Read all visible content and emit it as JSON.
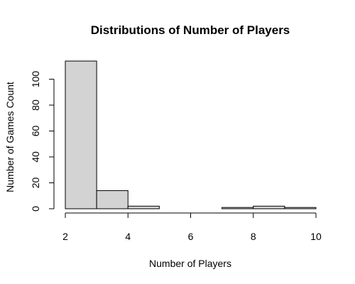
{
  "chart_data": {
    "type": "bar",
    "title": "Distributions of Number of Players",
    "xlabel": "Number of Players",
    "ylabel": "Number of Games Count",
    "bins": [
      [
        2,
        3
      ],
      [
        3,
        4
      ],
      [
        4,
        5
      ],
      [
        5,
        6
      ],
      [
        6,
        7
      ],
      [
        7,
        8
      ],
      [
        8,
        9
      ],
      [
        9,
        10
      ]
    ],
    "values": [
      114,
      14,
      2,
      0,
      0,
      1,
      2,
      1
    ],
    "xlim": [
      2,
      10
    ],
    "ylim": [
      0,
      114
    ],
    "xticks": [
      2,
      4,
      6,
      8,
      10
    ],
    "yticks": [
      0,
      20,
      40,
      60,
      80,
      100
    ],
    "bar_color": "#d3d3d3",
    "grid": false
  }
}
